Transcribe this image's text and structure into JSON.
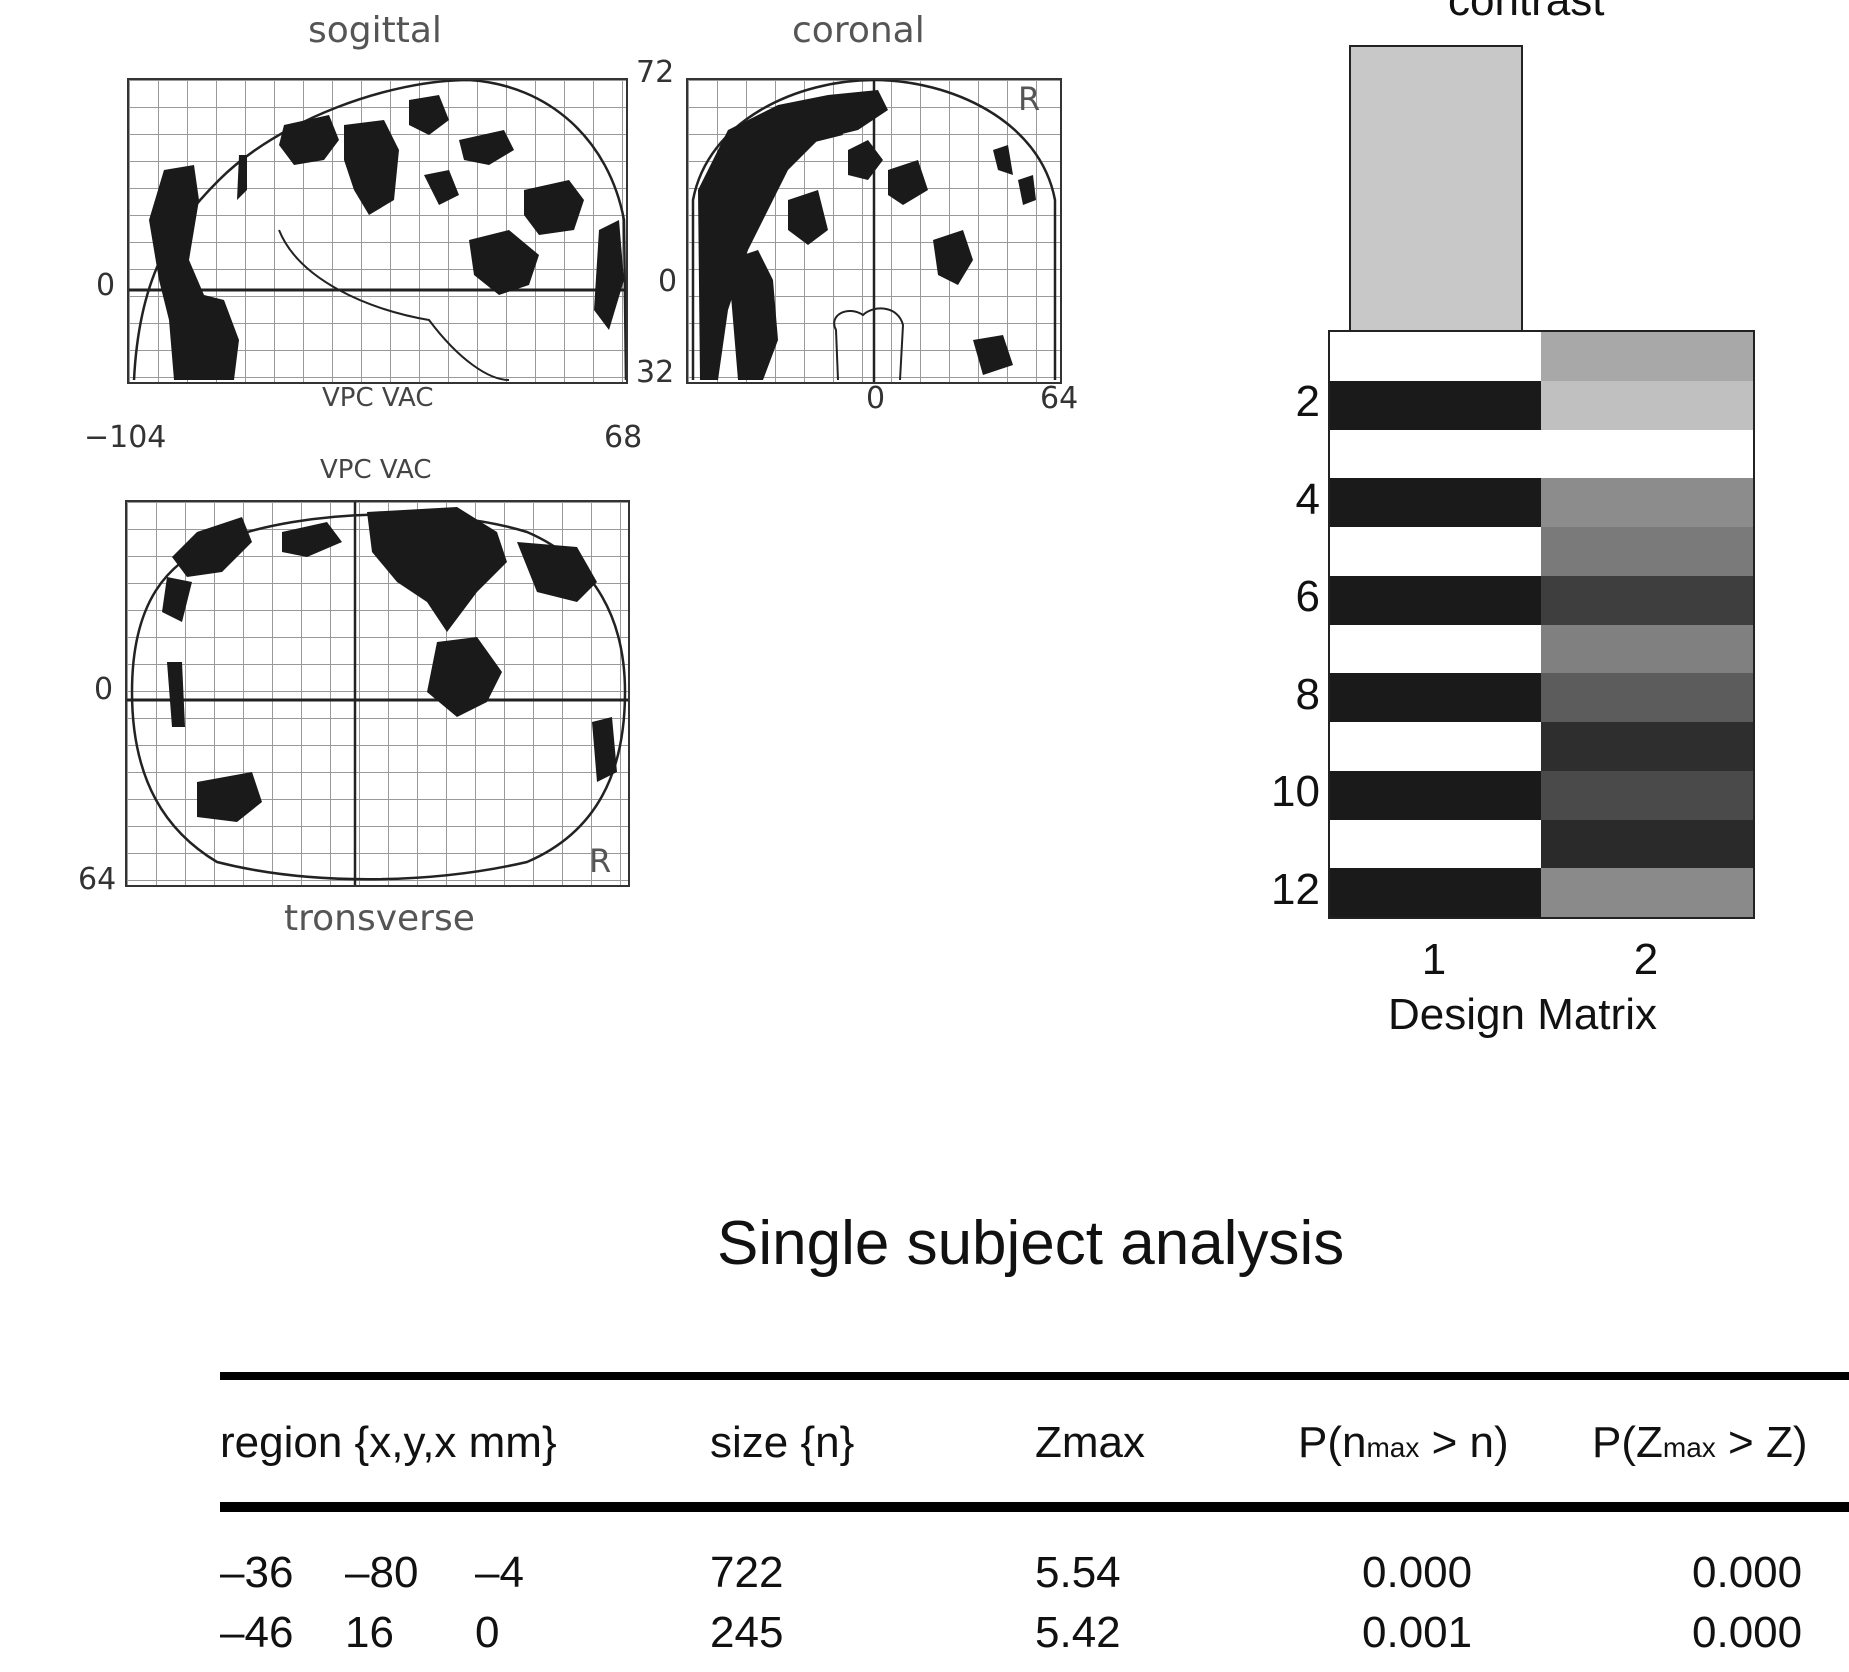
{
  "glass_brain": {
    "sagittal": {
      "title": "sogittal",
      "tick_left": "0",
      "tick_top_right": "72",
      "tick_bottom_right": "32",
      "bottom_caption": "VPC VAC",
      "x_min": "−104",
      "x_max": "68"
    },
    "coronal": {
      "title": "coronal",
      "corner_letter": "R",
      "tick_left": "0",
      "tick_bottom_center": "0",
      "tick_bottom_right": "64"
    },
    "transverse": {
      "title": "tronsverse",
      "top_caption": "VPC VAC",
      "tick_left_mid": "0",
      "tick_left_bottom": "64",
      "corner_letter": "R"
    }
  },
  "design_matrix": {
    "contrast_label": "contrast",
    "row_labels": [
      "2",
      "4",
      "6",
      "8",
      "10",
      "12"
    ],
    "col_labels": [
      "1",
      "2"
    ],
    "caption": "Design Matrix",
    "col1_shades": [
      "#ffffff",
      "#1a1a1a",
      "#ffffff",
      "#1a1a1a",
      "#ffffff",
      "#1a1a1a",
      "#ffffff",
      "#1a1a1a",
      "#ffffff",
      "#1a1a1a",
      "#ffffff",
      "#1a1a1a"
    ],
    "col2_shades": [
      "#a8a8a8",
      "#c0c0c0",
      "#ffffff",
      "#8c8c8c",
      "#7a7a7a",
      "#3e3e3e",
      "#808080",
      "#5c5c5c",
      "#2e2e2e",
      "#4a4a4a",
      "#2a2a2a",
      "#8a8a8a"
    ],
    "contrast_shade": "#c8c8c8"
  },
  "section_title": "Single subject analysis",
  "results_table": {
    "headers": {
      "region": "region {x,y,x mm}",
      "size": "size {n}",
      "zmax": "Zmax",
      "pn_pre": "P(n",
      "pn_sub": "max",
      "pn_post": " > n)",
      "pz_pre": "P(Z",
      "pz_sub": "max",
      "pz_post": " > Z)"
    },
    "rows": [
      {
        "x": "–36",
        "y": "–80",
        "z": "–4",
        "size": "722",
        "zmax": "5.54",
        "pn": "0.000",
        "pz": "0.000"
      },
      {
        "x": "–46",
        "y": "16",
        "z": "0",
        "size": "245",
        "zmax": "5.42",
        "pn": "0.001",
        "pz": "0.000"
      }
    ]
  }
}
